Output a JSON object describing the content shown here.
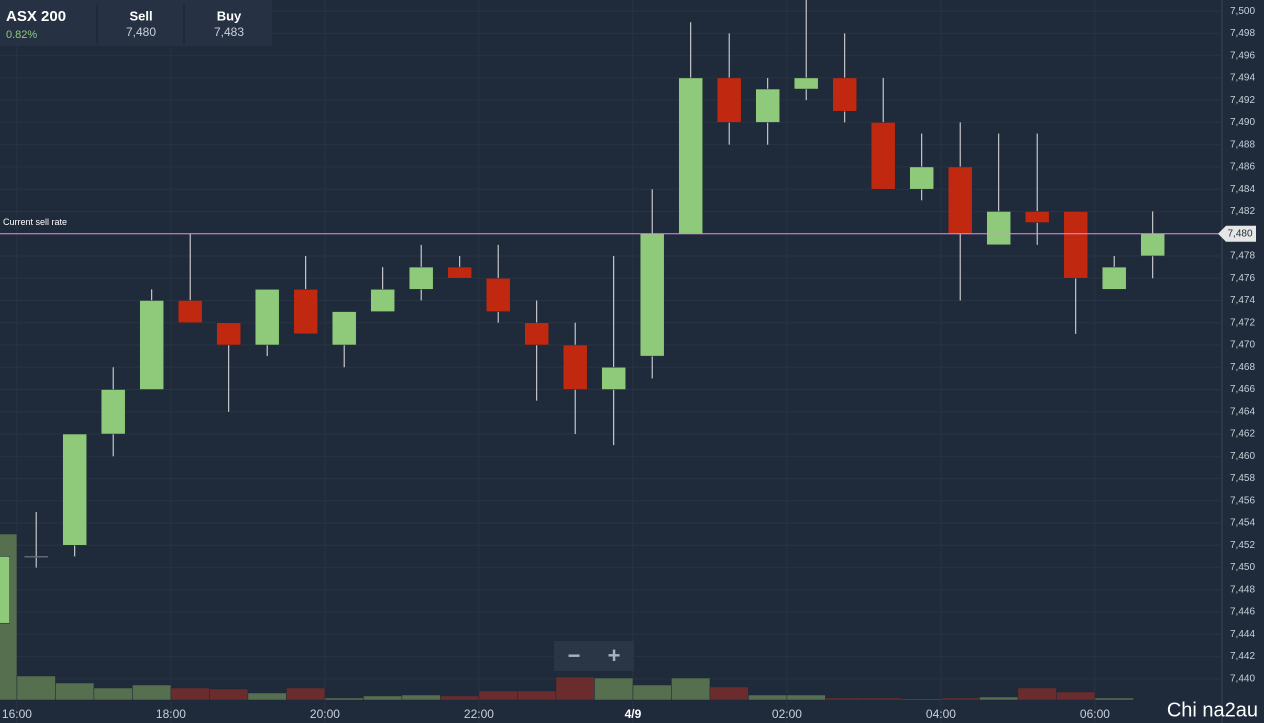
{
  "header": {
    "instrument": "ASX 200",
    "change": "0.82%",
    "sell_label": "Sell",
    "sell": "7,480",
    "buy_label": "Buy",
    "buy": "7,483",
    "zoom_out": "−",
    "zoom_in": "+",
    "watermark": "Chi na2au"
  },
  "chart_data": {
    "type": "candlestick",
    "x": [
      15.75,
      16.25,
      16.75,
      17.25,
      17.75,
      18.25,
      18.75,
      19.25,
      19.75,
      20.25,
      20.75,
      21.25,
      21.75,
      22.25,
      22.75,
      23.25,
      23.75,
      24.25,
      24.75,
      25.25,
      25.75,
      26.25,
      26.75,
      27.25,
      27.75,
      28.25,
      28.75,
      29.25,
      29.75,
      30.25,
      30.75
    ],
    "open": [
      7445,
      7451,
      7452,
      7462,
      7466,
      7474,
      7472,
      7470,
      7475,
      7470,
      7473,
      7475,
      7477,
      7476,
      7472,
      7470,
      7466,
      7469,
      7480,
      7494,
      7490,
      7493,
      7494,
      7490,
      7484,
      7486,
      7479,
      7482,
      7482,
      7475,
      7478
    ],
    "high": [
      7451,
      7455,
      7462,
      7468,
      7475,
      7480,
      7472,
      7475,
      7478,
      7473,
      7477,
      7479,
      7478,
      7479,
      7474,
      7472,
      7478,
      7484,
      7499,
      7498,
      7494,
      7501,
      7498,
      7494,
      7489,
      7490,
      7489,
      7489,
      7482,
      7478,
      7482
    ],
    "low": [
      7445,
      7450,
      7451,
      7460,
      7466,
      7472,
      7464,
      7469,
      7471,
      7468,
      7473,
      7474,
      7476,
      7472,
      7465,
      7462,
      7461,
      7467,
      7480,
      7488,
      7488,
      7492,
      7490,
      7484,
      7483,
      7474,
      7479,
      7479,
      7471,
      7475,
      7476
    ],
    "close": [
      7451,
      7451,
      7462,
      7466,
      7474,
      7472,
      7470,
      7475,
      7471,
      7473,
      7475,
      7477,
      7476,
      7473,
      7470,
      7466,
      7468,
      7480,
      7494,
      7490,
      7493,
      7494,
      7491,
      7484,
      7486,
      7480,
      7482,
      7481,
      7476,
      7477,
      7480
    ],
    "volume": [
      166,
      24,
      17,
      12,
      15,
      12,
      11,
      7,
      12,
      2,
      4,
      5,
      4,
      9,
      9,
      23,
      22,
      15,
      22,
      13,
      5,
      5,
      2,
      2,
      1,
      2,
      3,
      12,
      8,
      2,
      0
    ],
    "up_color": "#8fc97a",
    "down_color": "#c0290f",
    "volume_up_color": "#56704f",
    "volume_down_color": "#6a2c2c",
    "xlim": [
      15.78,
      31.65
    ],
    "xticks": [
      {
        "value": 16,
        "label": "16:00"
      },
      {
        "value": 18,
        "label": "18:00"
      },
      {
        "value": 20,
        "label": "20:00"
      },
      {
        "value": 22,
        "label": "22:00"
      },
      {
        "value": 24,
        "label": "4/9"
      },
      {
        "value": 26,
        "label": "02:00"
      },
      {
        "value": 28,
        "label": "04:00"
      },
      {
        "value": 30,
        "label": "06:00"
      }
    ],
    "ylim": [
      7438.1,
      7501
    ],
    "yticks": [
      {
        "value": 7440,
        "label": "7,440"
      },
      {
        "value": 7442,
        "label": "7,442"
      },
      {
        "value": 7444,
        "label": "7,444"
      },
      {
        "value": 7446,
        "label": "7,446"
      },
      {
        "value": 7448,
        "label": "7,448"
      },
      {
        "value": 7450,
        "label": "7,450"
      },
      {
        "value": 7452,
        "label": "7,452"
      },
      {
        "value": 7454,
        "label": "7,454"
      },
      {
        "value": 7456,
        "label": "7,456"
      },
      {
        "value": 7458,
        "label": "7,458"
      },
      {
        "value": 7460,
        "label": "7,460"
      },
      {
        "value": 7462,
        "label": "7,462"
      },
      {
        "value": 7464,
        "label": "7,464"
      },
      {
        "value": 7466,
        "label": "7,466"
      },
      {
        "value": 7468,
        "label": "7,468"
      },
      {
        "value": 7470,
        "label": "7,470"
      },
      {
        "value": 7472,
        "label": "7,472"
      },
      {
        "value": 7474,
        "label": "7,474"
      },
      {
        "value": 7476,
        "label": "7,476"
      },
      {
        "value": 7478,
        "label": "7,478"
      },
      {
        "value": 7480,
        "label": "7,480"
      },
      {
        "value": 7482,
        "label": "7,482"
      },
      {
        "value": 7484,
        "label": "7,484"
      },
      {
        "value": 7486,
        "label": "7,486"
      },
      {
        "value": 7488,
        "label": "7,488"
      },
      {
        "value": 7490,
        "label": "7,490"
      },
      {
        "value": 7492,
        "label": "7,492"
      },
      {
        "value": 7494,
        "label": "7,494"
      },
      {
        "value": 7496,
        "label": "7,496"
      },
      {
        "value": 7498,
        "label": "7,498"
      },
      {
        "value": 7500,
        "label": "7,500"
      }
    ],
    "grid": true,
    "current_rate": {
      "label": "Current sell rate",
      "value": 7480,
      "value_label": "7,480",
      "color": "#e58be6"
    }
  }
}
